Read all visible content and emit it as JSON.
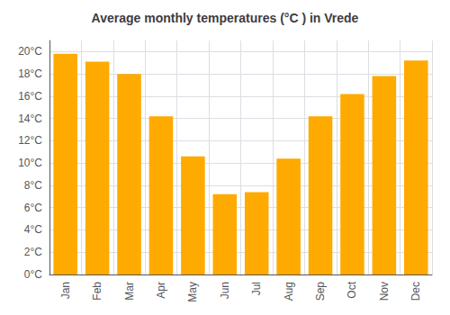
{
  "chart_data": {
    "type": "bar",
    "title": "Average monthly temperatures (°C ) in Vrede",
    "categories": [
      "Jan",
      "Feb",
      "Mar",
      "Apr",
      "May",
      "Jun",
      "Jul",
      "Aug",
      "Sep",
      "Oct",
      "Nov",
      "Dec"
    ],
    "values": [
      19.8,
      19.1,
      18.0,
      14.2,
      10.6,
      7.2,
      7.4,
      10.4,
      14.2,
      16.2,
      17.8,
      19.2
    ],
    "color": "#FFAA00",
    "ylim": [
      0,
      21
    ],
    "yticks": [
      {
        "value": 0,
        "label": "0°C"
      },
      {
        "value": 2,
        "label": "2°C"
      },
      {
        "value": 4,
        "label": "4°C"
      },
      {
        "value": 6,
        "label": "6°C"
      },
      {
        "value": 8,
        "label": "8°C"
      },
      {
        "value": 10,
        "label": "10°C"
      },
      {
        "value": 12,
        "label": "12°C"
      },
      {
        "value": 14,
        "label": "14°C"
      },
      {
        "value": 16,
        "label": "16°C"
      },
      {
        "value": 18,
        "label": "18°C"
      },
      {
        "value": 20,
        "label": "20°C"
      }
    ],
    "grid": true
  }
}
